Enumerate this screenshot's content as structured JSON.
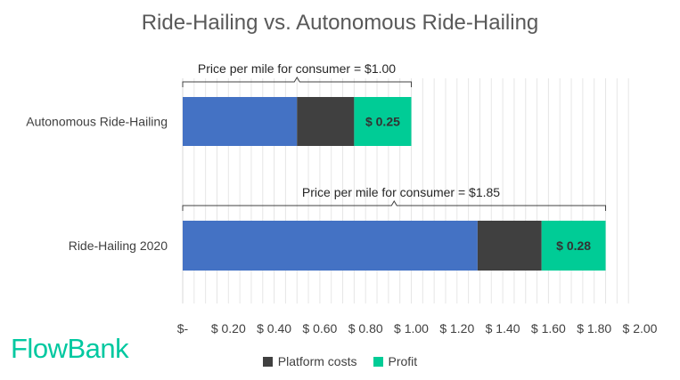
{
  "chart_data": {
    "type": "bar",
    "orientation": "horizontal",
    "stacked": true,
    "title": "Ride-Hailing vs. Autonomous Ride-Hailing",
    "categories": [
      "Autonomous Ride-Hailing",
      "Ride-Hailing 2020"
    ],
    "series": [
      {
        "values": [
          0.5,
          1.29
        ],
        "color": "#4472c4"
      },
      {
        "name": "Platform costs",
        "values": [
          0.25,
          0.28
        ],
        "color": "#404040"
      },
      {
        "name": "Profit",
        "values": [
          0.25,
          0.28
        ],
        "color": "#00cc96"
      }
    ],
    "data_labels": [
      "$ 0.25",
      "$ 0.28"
    ],
    "annotations": [
      "Price per mile for consumer = $1.00",
      "Price per mile for consumer = $1.85"
    ],
    "annotation_totals": [
      1.0,
      1.85
    ],
    "xlim": [
      0,
      2.0
    ],
    "x_ticks": [
      0,
      0.2,
      0.4,
      0.6,
      0.8,
      1.0,
      1.2,
      1.4,
      1.6,
      1.8,
      2.0
    ],
    "x_tick_labels": [
      "$-",
      "$ 0.20",
      "$ 0.40",
      "$ 0.60",
      "$ 0.80",
      "$ 1.00",
      "$ 1.20",
      "$ 1.40",
      "$ 1.60",
      "$ 1.80",
      "$ 2.00"
    ],
    "grid": "vertical",
    "legend_position": "bottom"
  },
  "brand": {
    "logo_text": "FlowBank",
    "color": "#00c8a0"
  }
}
